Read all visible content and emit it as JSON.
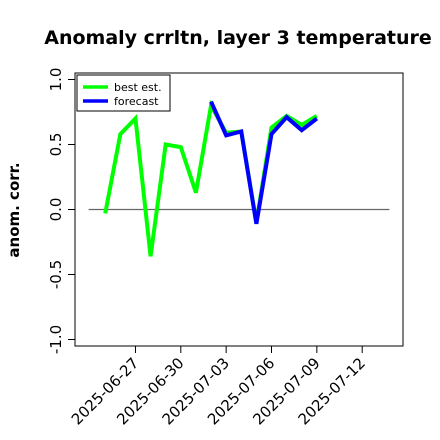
{
  "chart_data": {
    "type": "line",
    "title": "Anomaly crrltn, layer 3 temperature",
    "ylabel": "anom. corr.",
    "xlabel": "",
    "ylim": [
      -1.05,
      1.05
    ],
    "yticks": [
      "-1.0",
      "-0.5",
      "0.0",
      "0.5",
      "1.0"
    ],
    "ytick_values": [
      -1.0,
      -0.5,
      0.0,
      0.5,
      1.0
    ],
    "xticks": [
      "2025-06-27",
      "2025-06-30",
      "2025-07-03",
      "2025-07-06",
      "2025-07-09",
      "2025-07-12"
    ],
    "xtick_day_index": [
      6,
      9,
      12,
      15,
      18,
      21
    ],
    "xtick_colors": [
      "#000000",
      "#000000",
      "#228b22",
      "#000000",
      "#000000",
      "#000000"
    ],
    "xlim_day_index": [
      2.0,
      23.7
    ],
    "x": [
      "2025-06-25",
      "2025-06-26",
      "2025-06-27",
      "2025-06-28",
      "2025-06-29",
      "2025-06-30",
      "2025-07-01",
      "2025-07-02",
      "2025-07-03",
      "2025-07-04",
      "2025-07-05",
      "2025-07-06",
      "2025-07-07",
      "2025-07-08",
      "2025-07-09",
      "2025-07-10"
    ],
    "x_day_index": [
      4,
      5,
      6,
      7,
      8,
      9,
      10,
      11,
      12,
      13,
      14,
      15,
      16,
      17,
      18,
      19
    ],
    "series": [
      {
        "name": "best est.",
        "color": "#00ff00",
        "values": [
          -0.03,
          0.58,
          0.7,
          -0.36,
          0.5,
          0.48,
          0.13,
          0.8,
          0.59,
          0.6,
          -0.1,
          0.63,
          0.72,
          0.65,
          0.72,
          null
        ]
      },
      {
        "name": "forecast",
        "color": "#0000ff",
        "values": [
          null,
          null,
          null,
          null,
          null,
          null,
          null,
          0.83,
          0.57,
          0.6,
          -0.11,
          0.58,
          0.71,
          0.61,
          0.7,
          null
        ]
      }
    ],
    "reference_line": 0.0,
    "legend_position": "top-left",
    "grid": false
  }
}
